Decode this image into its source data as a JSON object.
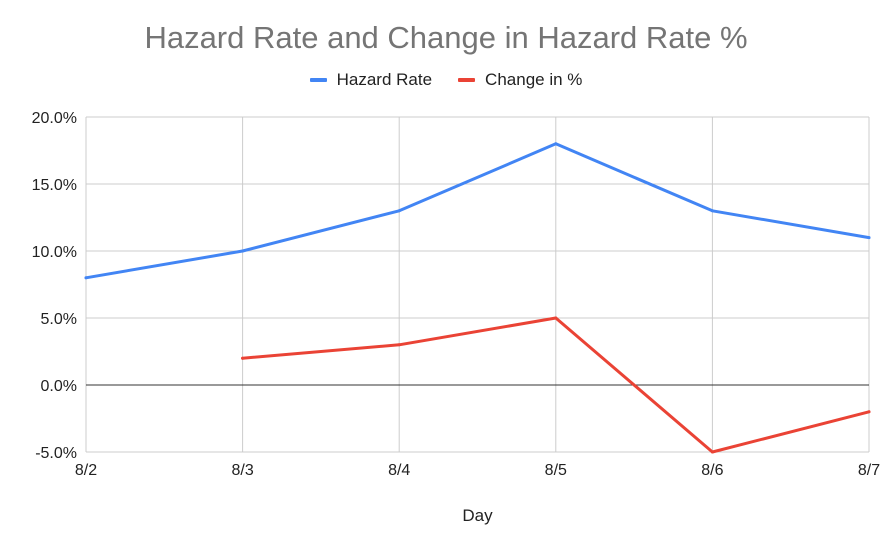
{
  "chart_data": {
    "type": "line",
    "title": "Hazard Rate and Change in Hazard Rate %",
    "xlabel": "Day",
    "ylabel": "",
    "categories": [
      "8/2",
      "8/3",
      "8/4",
      "8/5",
      "8/6",
      "8/7"
    ],
    "y_ticks": [
      "20.0%",
      "15.0%",
      "10.0%",
      "5.0%",
      "0.0%",
      "-5.0%"
    ],
    "ylim": [
      -5,
      20
    ],
    "y_unit": "%",
    "grid": true,
    "legend_position": "top",
    "series": [
      {
        "name": "Hazard Rate",
        "color": "#4285f4",
        "values": [
          8,
          10,
          13,
          18,
          13,
          11
        ]
      },
      {
        "name": "Change in %",
        "color": "#ea4335",
        "values": [
          null,
          2,
          3,
          5,
          -5,
          -2
        ]
      }
    ]
  }
}
